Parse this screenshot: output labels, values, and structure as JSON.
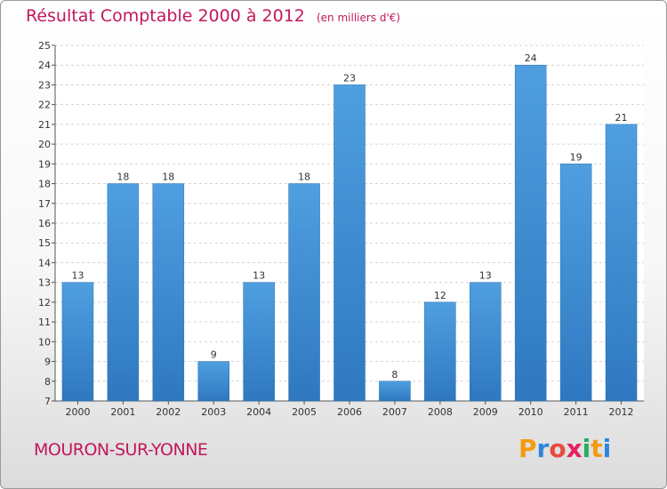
{
  "title": "Résultat Comptable 2000 à 2012",
  "subtitle": "(en milliers d'€)",
  "town": "MOURON-SUR-YONNE",
  "logo": {
    "letters": [
      "P",
      "r",
      "o",
      "x",
      "i",
      "t",
      "i"
    ],
    "colors": [
      "#f39c12",
      "#2e86de",
      "#e74c3c",
      "#e91e63",
      "#27ae60",
      "#f39c12",
      "#2e86de"
    ]
  },
  "colors": {
    "title": "#c2185b",
    "bar": "#4f9fe0",
    "bar_dark": "#2f78c0"
  },
  "chart_data": {
    "type": "bar",
    "categories": [
      "2000",
      "2001",
      "2002",
      "2003",
      "2004",
      "2005",
      "2006",
      "2007",
      "2008",
      "2009",
      "2010",
      "2011",
      "2012"
    ],
    "values": [
      13,
      18,
      18,
      9,
      13,
      18,
      23,
      8,
      12,
      13,
      24,
      19,
      21
    ],
    "ylim": [
      7,
      25
    ],
    "yticks": [
      7,
      8,
      9,
      10,
      11,
      12,
      13,
      14,
      15,
      16,
      17,
      18,
      19,
      20,
      21,
      22,
      23,
      24,
      25
    ],
    "grid": true
  }
}
